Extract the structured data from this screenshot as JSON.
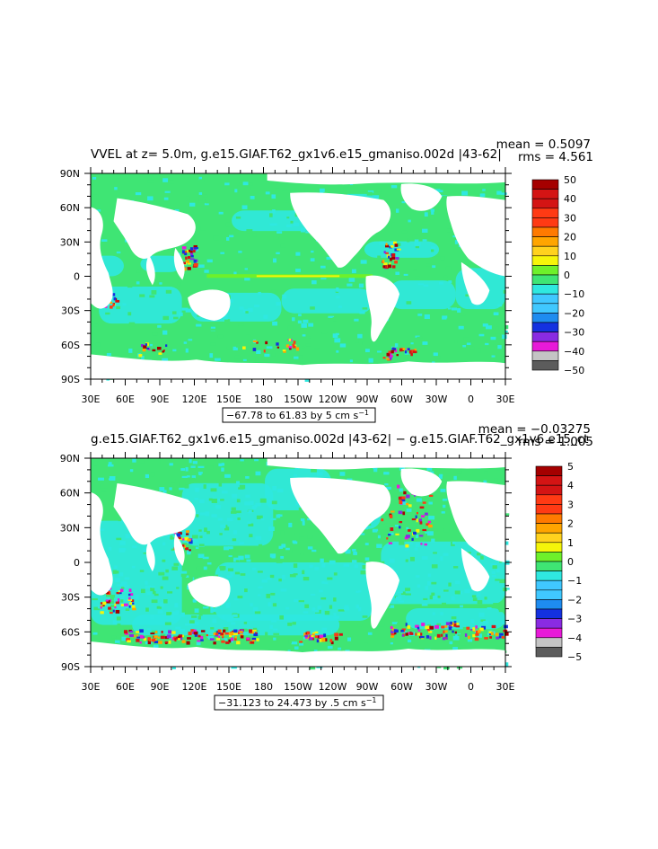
{
  "colors": {
    "ocean_base": "#3fe574",
    "land": "#ffffff",
    "palette": [
      "#5c5c5c",
      "#c4c4c4",
      "#e81ad8",
      "#8a2be2",
      "#1431e0",
      "#1e8cf0",
      "#40c8ff",
      "#2fe8e0",
      "#3fe574",
      "#6ef02b",
      "#f5f50a",
      "#ffd21e",
      "#ffa500",
      "#ff7a00",
      "#ff3a14",
      "#d41414",
      "#a50000"
    ]
  },
  "panels": [
    {
      "title": "VVEL at z=   5.0m, g.e15.GIAF.T62_gx1v6.e15_gmaniso.002d |43-62|",
      "mean": "mean = 0.5097",
      "rms": "rms = 4.561",
      "range_label": "−67.78 to 61.83 by 5 cm s",
      "range_sup": "−1",
      "colorbar_labels": [
        "50",
        "40",
        "30",
        "20",
        "10",
        "0",
        "−10",
        "−20",
        "−30",
        "−40",
        "−50"
      ]
    },
    {
      "title": "g.e15.GIAF.T62_gx1v6.e15_gmaniso.002d |43-62| − g.e15.GIAF.T62_gx1v6.e15_ct",
      "mean": "mean = −0.03275",
      "rms": "rms = 1.005",
      "range_label": "−31.123 to 24.473 by .5 cm s",
      "range_sup": "−1",
      "colorbar_labels": [
        "5",
        "4",
        "3",
        "2",
        "1",
        "0",
        "−1",
        "−2",
        "−3",
        "−4",
        "−5"
      ]
    }
  ],
  "chart_data": [
    {
      "type": "heatmap",
      "title": "VVEL at z=   5.0m, g.e15.GIAF.T62_gx1v6.e15_gmaniso.002d |43-62|",
      "quantity": "VVEL",
      "units": "cm s−1",
      "mean": 0.5097,
      "rms": 4.561,
      "data_min": -67.78,
      "data_max": 61.83,
      "contour_interval": 5,
      "color_levels": [
        -50,
        -45,
        -40,
        -35,
        -30,
        -25,
        -20,
        -15,
        -10,
        -5,
        0,
        5,
        10,
        15,
        20,
        25,
        30,
        35,
        40,
        45,
        50
      ],
      "x_ticks": [
        "30E",
        "60E",
        "90E",
        "120E",
        "150E",
        "180",
        "150W",
        "120W",
        "90W",
        "60W",
        "30W",
        "0",
        "30E"
      ],
      "y_ticks": [
        "90N",
        "60N",
        "30N",
        "0",
        "30S",
        "60S",
        "90S"
      ],
      "xlim": [
        30,
        390
      ],
      "ylim": [
        -90,
        90
      ]
    },
    {
      "type": "heatmap",
      "title": "g.e15.GIAF.T62_gx1v6.e15_gmaniso.002d |43-62| − g.e15.GIAF.T62_gx1v6.e15_ct",
      "quantity": "VVEL difference",
      "units": "cm s−1",
      "mean": -0.03275,
      "rms": 1.005,
      "data_min": -31.123,
      "data_max": 24.473,
      "contour_interval": 0.5,
      "color_levels": [
        -5,
        -4.5,
        -4,
        -3.5,
        -3,
        -2.5,
        -2,
        -1.5,
        -1,
        -0.5,
        0,
        0.5,
        1,
        1.5,
        2,
        2.5,
        3,
        3.5,
        4,
        4.5,
        5
      ],
      "x_ticks": [
        "30E",
        "60E",
        "90E",
        "120E",
        "150E",
        "180",
        "150W",
        "120W",
        "90W",
        "60W",
        "30W",
        "0",
        "30E"
      ],
      "y_ticks": [
        "90N",
        "60N",
        "30N",
        "0",
        "30S",
        "60S",
        "90S"
      ],
      "xlim": [
        30,
        390
      ],
      "ylim": [
        -90,
        90
      ]
    }
  ]
}
